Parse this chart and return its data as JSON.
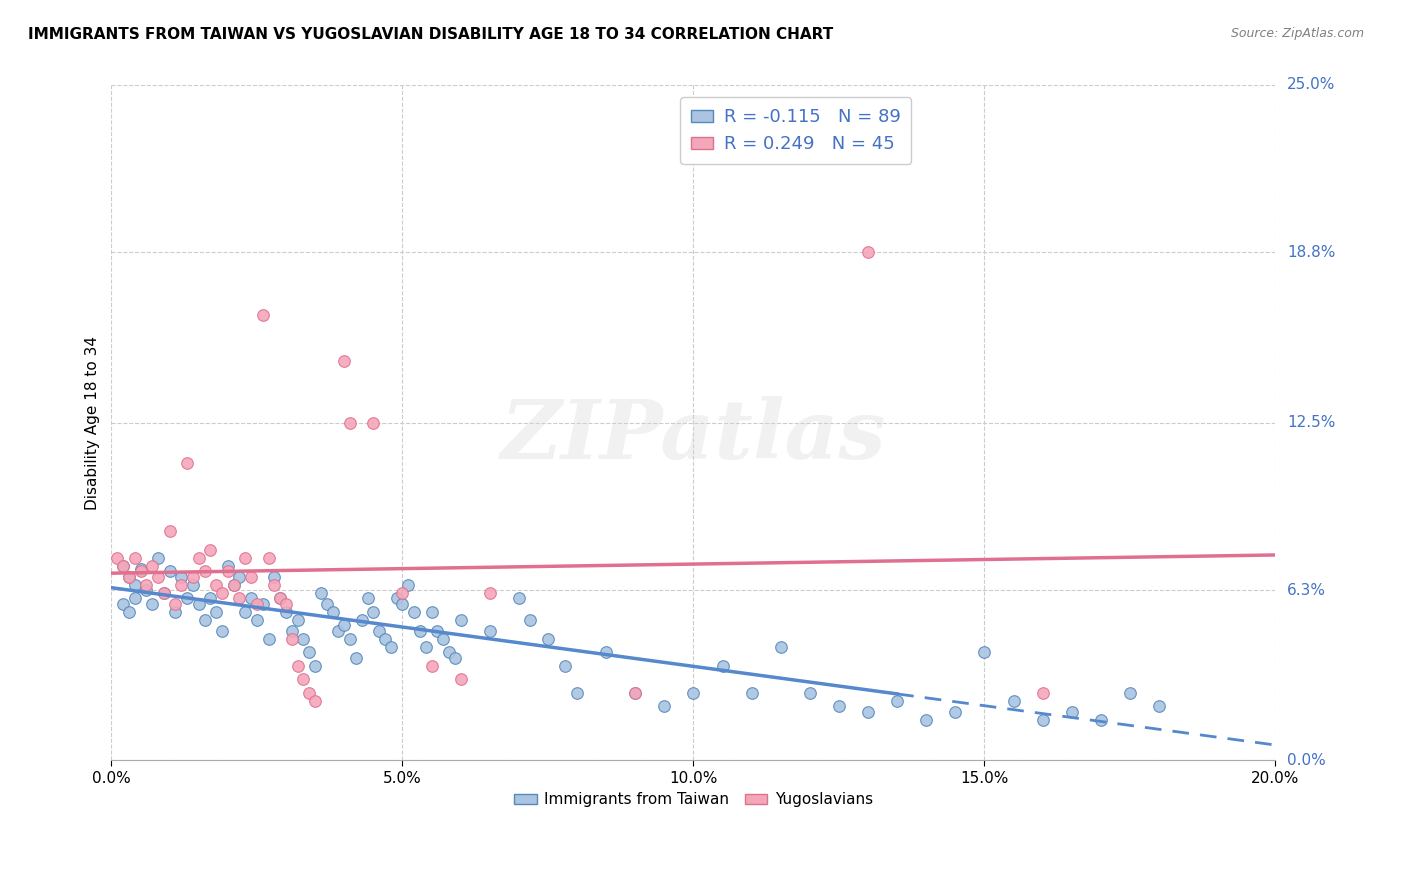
{
  "title": "IMMIGRANTS FROM TAIWAN VS YUGOSLAVIAN DISABILITY AGE 18 TO 34 CORRELATION CHART",
  "source": "Source: ZipAtlas.com",
  "xlabel_ticks": [
    "0.0%",
    "5.0%",
    "10.0%",
    "15.0%",
    "20.0%"
  ],
  "xlabel_tick_vals": [
    0.0,
    0.05,
    0.1,
    0.15,
    0.2
  ],
  "y_tick_vals": [
    0.0,
    0.063,
    0.125,
    0.188,
    0.25
  ],
  "y_tick_labels": [
    "0.0%",
    "6.3%",
    "12.5%",
    "18.8%",
    "25.0%"
  ],
  "taiwan_color": "#aac4e2",
  "yugoslavian_color": "#f4a7b9",
  "taiwan_edge_color": "#5588bb",
  "yugoslavian_edge_color": "#e07090",
  "taiwan_line_color": "#5588cc",
  "yugoslavian_line_color": "#e07090",
  "watermark": "ZIPatlas",
  "background_color": "#ffffff",
  "taiwan_scatter": [
    [
      0.002,
      0.072
    ],
    [
      0.003,
      0.068
    ],
    [
      0.004,
      0.065
    ],
    [
      0.005,
      0.071
    ],
    [
      0.006,
      0.063
    ],
    [
      0.007,
      0.058
    ],
    [
      0.008,
      0.075
    ],
    [
      0.009,
      0.062
    ],
    [
      0.01,
      0.07
    ],
    [
      0.011,
      0.055
    ],
    [
      0.012,
      0.068
    ],
    [
      0.013,
      0.06
    ],
    [
      0.014,
      0.065
    ],
    [
      0.015,
      0.058
    ],
    [
      0.016,
      0.052
    ],
    [
      0.017,
      0.06
    ],
    [
      0.018,
      0.055
    ],
    [
      0.019,
      0.048
    ],
    [
      0.02,
      0.072
    ],
    [
      0.021,
      0.065
    ],
    [
      0.022,
      0.068
    ],
    [
      0.023,
      0.055
    ],
    [
      0.024,
      0.06
    ],
    [
      0.025,
      0.052
    ],
    [
      0.026,
      0.058
    ],
    [
      0.027,
      0.045
    ],
    [
      0.028,
      0.068
    ],
    [
      0.029,
      0.06
    ],
    [
      0.03,
      0.055
    ],
    [
      0.031,
      0.048
    ],
    [
      0.032,
      0.052
    ],
    [
      0.033,
      0.045
    ],
    [
      0.034,
      0.04
    ],
    [
      0.035,
      0.035
    ],
    [
      0.036,
      0.062
    ],
    [
      0.037,
      0.058
    ],
    [
      0.038,
      0.055
    ],
    [
      0.039,
      0.048
    ],
    [
      0.04,
      0.05
    ],
    [
      0.041,
      0.045
    ],
    [
      0.042,
      0.038
    ],
    [
      0.043,
      0.052
    ],
    [
      0.044,
      0.06
    ],
    [
      0.045,
      0.055
    ],
    [
      0.046,
      0.048
    ],
    [
      0.047,
      0.045
    ],
    [
      0.048,
      0.042
    ],
    [
      0.049,
      0.06
    ],
    [
      0.05,
      0.058
    ],
    [
      0.051,
      0.065
    ],
    [
      0.052,
      0.055
    ],
    [
      0.053,
      0.048
    ],
    [
      0.054,
      0.042
    ],
    [
      0.055,
      0.055
    ],
    [
      0.056,
      0.048
    ],
    [
      0.057,
      0.045
    ],
    [
      0.058,
      0.04
    ],
    [
      0.059,
      0.038
    ],
    [
      0.06,
      0.052
    ],
    [
      0.065,
      0.048
    ],
    [
      0.07,
      0.06
    ],
    [
      0.072,
      0.052
    ],
    [
      0.075,
      0.045
    ],
    [
      0.078,
      0.035
    ],
    [
      0.08,
      0.025
    ],
    [
      0.085,
      0.04
    ],
    [
      0.09,
      0.025
    ],
    [
      0.095,
      0.02
    ],
    [
      0.1,
      0.025
    ],
    [
      0.105,
      0.035
    ],
    [
      0.11,
      0.025
    ],
    [
      0.115,
      0.042
    ],
    [
      0.12,
      0.025
    ],
    [
      0.125,
      0.02
    ],
    [
      0.13,
      0.018
    ],
    [
      0.135,
      0.022
    ],
    [
      0.14,
      0.015
    ],
    [
      0.145,
      0.018
    ],
    [
      0.15,
      0.04
    ],
    [
      0.155,
      0.022
    ],
    [
      0.16,
      0.015
    ],
    [
      0.165,
      0.018
    ],
    [
      0.17,
      0.015
    ],
    [
      0.175,
      0.025
    ],
    [
      0.18,
      0.02
    ],
    [
      0.002,
      0.058
    ],
    [
      0.003,
      0.055
    ],
    [
      0.004,
      0.06
    ]
  ],
  "yugoslavian_scatter": [
    [
      0.001,
      0.075
    ],
    [
      0.002,
      0.072
    ],
    [
      0.003,
      0.068
    ],
    [
      0.004,
      0.075
    ],
    [
      0.005,
      0.07
    ],
    [
      0.006,
      0.065
    ],
    [
      0.007,
      0.072
    ],
    [
      0.008,
      0.068
    ],
    [
      0.009,
      0.062
    ],
    [
      0.01,
      0.085
    ],
    [
      0.011,
      0.058
    ],
    [
      0.012,
      0.065
    ],
    [
      0.013,
      0.11
    ],
    [
      0.014,
      0.068
    ],
    [
      0.015,
      0.075
    ],
    [
      0.016,
      0.07
    ],
    [
      0.017,
      0.078
    ],
    [
      0.018,
      0.065
    ],
    [
      0.019,
      0.062
    ],
    [
      0.02,
      0.07
    ],
    [
      0.021,
      0.065
    ],
    [
      0.022,
      0.06
    ],
    [
      0.023,
      0.075
    ],
    [
      0.024,
      0.068
    ],
    [
      0.025,
      0.058
    ],
    [
      0.026,
      0.165
    ],
    [
      0.027,
      0.075
    ],
    [
      0.028,
      0.065
    ],
    [
      0.029,
      0.06
    ],
    [
      0.03,
      0.058
    ],
    [
      0.031,
      0.045
    ],
    [
      0.032,
      0.035
    ],
    [
      0.033,
      0.03
    ],
    [
      0.034,
      0.025
    ],
    [
      0.035,
      0.022
    ],
    [
      0.04,
      0.148
    ],
    [
      0.041,
      0.125
    ],
    [
      0.045,
      0.125
    ],
    [
      0.05,
      0.062
    ],
    [
      0.055,
      0.035
    ],
    [
      0.06,
      0.03
    ],
    [
      0.065,
      0.062
    ],
    [
      0.09,
      0.025
    ],
    [
      0.13,
      0.188
    ],
    [
      0.16,
      0.025
    ]
  ]
}
